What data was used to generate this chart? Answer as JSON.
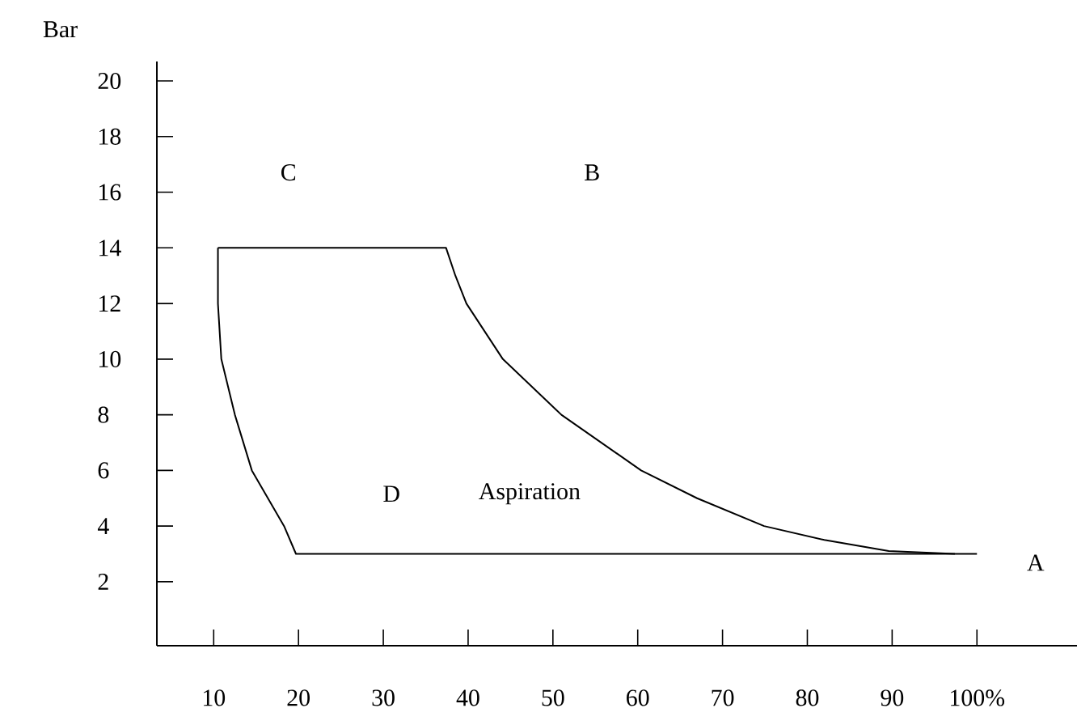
{
  "chart_data": {
    "type": "line",
    "ylabel": "Bar",
    "series": [
      {
        "color": "#000000",
        "x": [
          10.5,
          37.4,
          38.5,
          39.8,
          44.1,
          51.0,
          60.4,
          67.0,
          74.9,
          82.0,
          89.6,
          97.4
        ],
        "values": [
          14,
          14,
          13,
          12,
          10,
          8,
          6,
          5,
          4,
          3.5,
          3.1,
          3
        ]
      },
      {
        "color": "#000000",
        "x": [
          10.5,
          10.5,
          10.9,
          12.5,
          14.5,
          18.3,
          19.7,
          100
        ],
        "values": [
          14,
          12,
          10,
          8,
          6,
          4,
          3,
          3
        ]
      }
    ],
    "xlim": [
      3.3,
      111.8
    ],
    "ylim": [
      -0.3,
      20.7
    ],
    "xticks": [
      10,
      20,
      30,
      40,
      50,
      60,
      70,
      80,
      90,
      {
        "value": 100,
        "label": "100%"
      }
    ],
    "yticks": [
      2,
      4,
      6,
      8,
      10,
      12,
      14,
      16,
      18,
      20
    ],
    "annotations": [
      "C",
      "B",
      "D",
      "Aspiration",
      "A"
    ]
  }
}
